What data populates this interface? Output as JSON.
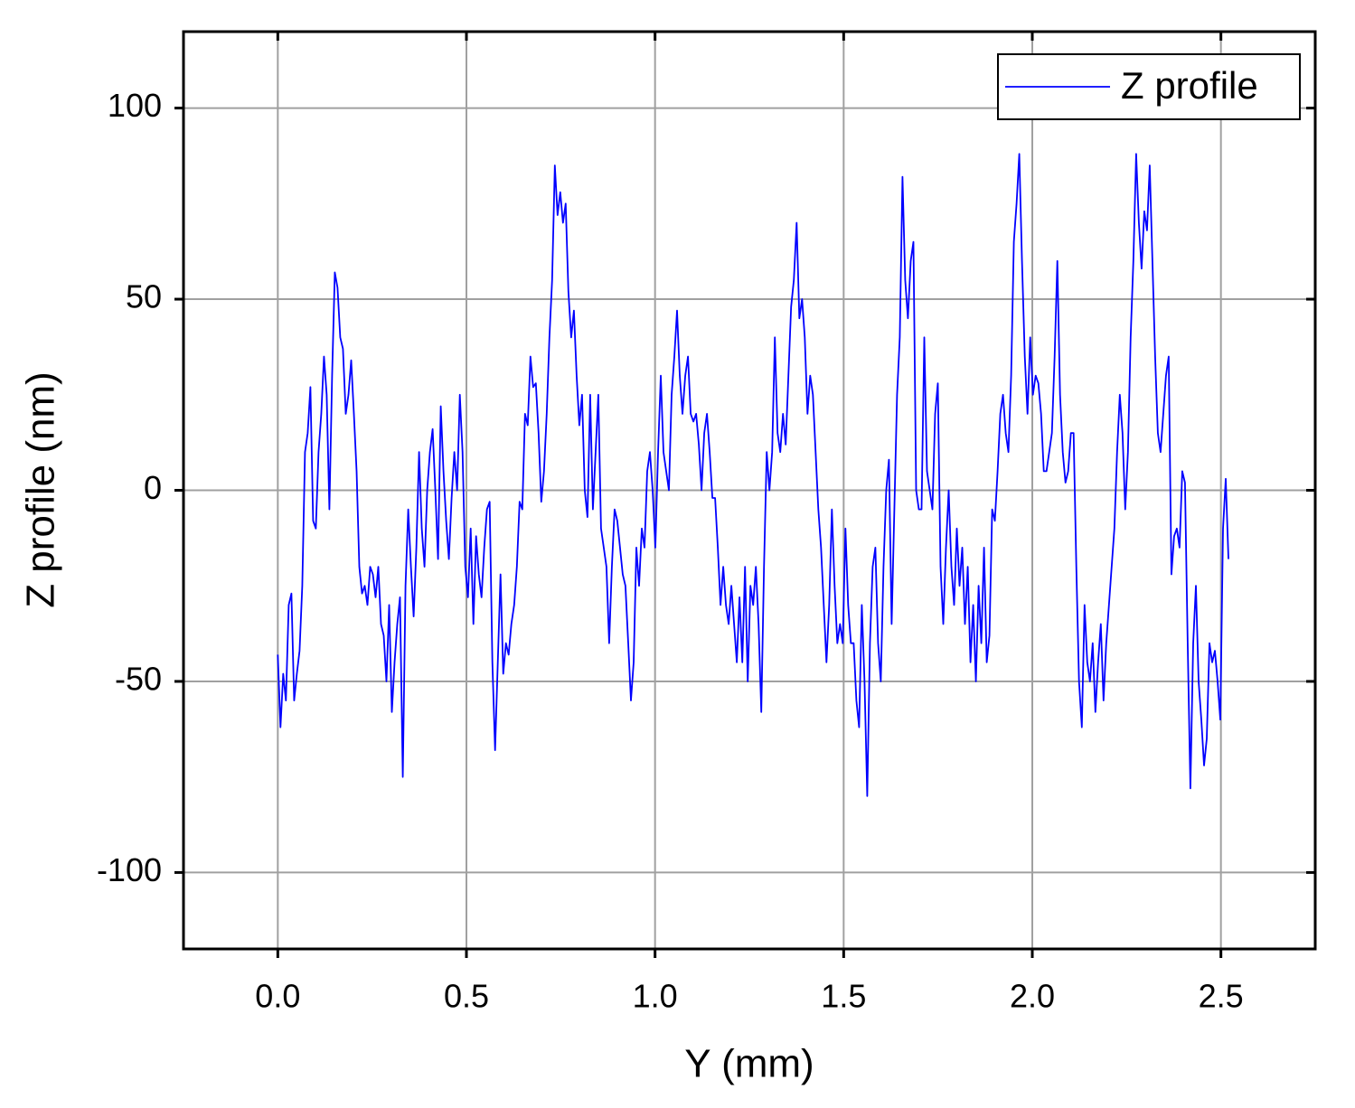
{
  "chart_data": {
    "type": "line",
    "xlabel": "Y (mm)",
    "ylabel": "Z profile (nm)",
    "xlim": [
      -0.25,
      2.75
    ],
    "ylim": [
      -120,
      120
    ],
    "xticks": [
      {
        "value": 0,
        "label": "0.0"
      },
      0.5,
      {
        "value": 1,
        "label": "1.0"
      },
      1.5,
      {
        "value": 2,
        "label": "2.0"
      },
      2.5
    ],
    "yticks": [
      -100,
      -50,
      0,
      50,
      100
    ],
    "grid": true,
    "legend": "upper right",
    "x": [
      0,
      0.0072,
      0.0144,
      0.0216,
      0.0288,
      0.036,
      0.0432,
      0.0504,
      0.0576,
      0.0648,
      0.072,
      0.0792,
      0.0864,
      0.0936,
      0.1008,
      0.108,
      0.1152,
      0.1224,
      0.1296,
      0.1368,
      0.144,
      0.1512,
      0.1584,
      0.1656,
      0.1728,
      0.18,
      0.1872,
      0.1944,
      0.2016,
      0.2088,
      0.216,
      0.2232,
      0.2304,
      0.2376,
      0.2448,
      0.252,
      0.2592,
      0.2664,
      0.2736,
      0.2808,
      0.288,
      0.2952,
      0.3024,
      0.3096,
      0.3168,
      0.324,
      0.3312,
      0.3384,
      0.3456,
      0.3528,
      0.36,
      0.3672,
      0.3744,
      0.3816,
      0.3888,
      0.396,
      0.4032,
      0.4104,
      0.4176,
      0.4248,
      0.432,
      0.4392,
      0.4464,
      0.4536,
      0.4608,
      0.468,
      0.4752,
      0.4824,
      0.4896,
      0.4968,
      0.504,
      0.5112,
      0.5184,
      0.5256,
      0.5328,
      0.54,
      0.5472,
      0.5544,
      0.5616,
      0.5688,
      0.576,
      0.5832,
      0.5904,
      0.5976,
      0.6048,
      0.612,
      0.6192,
      0.6264,
      0.6336,
      0.6408,
      0.648,
      0.6552,
      0.6624,
      0.6696,
      0.6768,
      0.684,
      0.6912,
      0.6984,
      0.7056,
      0.7128,
      0.72,
      0.7272,
      0.7344,
      0.7416,
      0.7488,
      0.756,
      0.7632,
      0.7704,
      0.7776,
      0.7848,
      0.792,
      0.7992,
      0.8064,
      0.8136,
      0.8208,
      0.828,
      0.8352,
      0.8424,
      0.8496,
      0.8568,
      0.864,
      0.8712,
      0.8784,
      0.8856,
      0.8928,
      0.9,
      0.9072,
      0.9144,
      0.9216,
      0.9288,
      0.936,
      0.9432,
      0.9504,
      0.9576,
      0.9648,
      0.972,
      0.9792,
      0.9864,
      0.9936,
      1.0008,
      1.008,
      1.0152,
      1.0224,
      1.0296,
      1.0368,
      1.044,
      1.0512,
      1.0584,
      1.0656,
      1.0728,
      1.08,
      1.0872,
      1.0944,
      1.1016,
      1.1088,
      1.116,
      1.1232,
      1.1304,
      1.1376,
      1.1448,
      1.152,
      1.1592,
      1.1664,
      1.1736,
      1.1808,
      1.188,
      1.1952,
      1.2024,
      1.2096,
      1.2168,
      1.224,
      1.2312,
      1.2384,
      1.2456,
      1.2528,
      1.26,
      1.2672,
      1.2744,
      1.2816,
      1.2888,
      1.296,
      1.3032,
      1.3104,
      1.3176,
      1.3248,
      1.332,
      1.3392,
      1.3464,
      1.3536,
      1.3608,
      1.368,
      1.3752,
      1.3824,
      1.3896,
      1.3968,
      1.404,
      1.4112,
      1.4184,
      1.4256,
      1.4328,
      1.44,
      1.4472,
      1.4544,
      1.4616,
      1.4688,
      1.476,
      1.4832,
      1.4904,
      1.4976,
      1.5048,
      1.512,
      1.5192,
      1.5264,
      1.5336,
      1.5408,
      1.548,
      1.5552,
      1.5624,
      1.5696,
      1.5768,
      1.584,
      1.5912,
      1.5984,
      1.6056,
      1.6128,
      1.62,
      1.6272,
      1.6344,
      1.6416,
      1.6488,
      1.656,
      1.6632,
      1.6704,
      1.6776,
      1.6848,
      1.692,
      1.6992,
      1.7064,
      1.7136,
      1.7208,
      1.728,
      1.7352,
      1.7424,
      1.7496,
      1.7568,
      1.764,
      1.7712,
      1.7784,
      1.7856,
      1.7928,
      1.8,
      1.8072,
      1.8144,
      1.8216,
      1.8288,
      1.836,
      1.8432,
      1.8504,
      1.8576,
      1.8648,
      1.872,
      1.8792,
      1.8864,
      1.8936,
      1.9008,
      1.908,
      1.9152,
      1.9224,
      1.9296,
      1.9368,
      1.944,
      1.9512,
      1.9584,
      1.9656,
      1.9728,
      1.98,
      1.9872,
      1.9944,
      2.0016,
      2.0088,
      2.016,
      2.0232,
      2.0304,
      2.0376,
      2.0448,
      2.052,
      2.0592,
      2.0664,
      2.0736,
      2.0808,
      2.088,
      2.0952,
      2.1024,
      2.1096,
      2.1168,
      2.124,
      2.1312,
      2.1384,
      2.1456,
      2.1528,
      2.16,
      2.1672,
      2.1744,
      2.1816,
      2.1888,
      2.196,
      2.2032,
      2.2104,
      2.2176,
      2.2248,
      2.232,
      2.2392,
      2.2464,
      2.2536,
      2.2608,
      2.268,
      2.2752,
      2.2824,
      2.2896,
      2.2968,
      2.304,
      2.3112,
      2.3184,
      2.3256,
      2.3328,
      2.34,
      2.3472,
      2.3544,
      2.3616,
      2.3688,
      2.376,
      2.3832,
      2.3904,
      2.3976,
      2.4048,
      2.412,
      2.4192,
      2.4264,
      2.4336,
      2.4408,
      2.448,
      2.4552,
      2.4624,
      2.4696,
      2.4768,
      2.484,
      2.4912,
      2.4984,
      2.5056,
      2.5128,
      2.52
    ],
    "series": [
      {
        "name": "Z profile",
        "color": "#0000ff",
        "values": [
          -43,
          -62,
          -48,
          -55,
          -30,
          -27,
          -55,
          -48,
          -42,
          -25,
          10,
          15,
          27,
          -8,
          -10,
          10,
          20,
          35,
          25,
          -5,
          30,
          57,
          53,
          40,
          37,
          20,
          25,
          34,
          20,
          5,
          -20,
          -27,
          -25,
          -30,
          -20,
          -22,
          -28,
          -20,
          -35,
          -38,
          -50,
          -30,
          -58,
          -45,
          -35,
          -28,
          -75,
          -25,
          -5,
          -20,
          -33,
          -15,
          10,
          -10,
          -20,
          0,
          10,
          16,
          0,
          -18,
          22,
          5,
          -8,
          -18,
          -2,
          10,
          0,
          25,
          10,
          -20,
          -28,
          -10,
          -35,
          -12,
          -22,
          -28,
          -15,
          -5,
          -3,
          -45,
          -68,
          -45,
          -22,
          -48,
          -40,
          -43,
          -35,
          -30,
          -20,
          -3,
          -5,
          20,
          17,
          35,
          27,
          28,
          15,
          -3,
          5,
          20,
          40,
          55,
          85,
          72,
          78,
          70,
          75,
          52,
          40,
          47,
          30,
          17,
          25,
          0,
          -7,
          25,
          -5,
          10,
          25,
          -10,
          -15,
          -20,
          -40,
          -20,
          -5,
          -8,
          -15,
          -22,
          -25,
          -40,
          -55,
          -45,
          -15,
          -25,
          -10,
          -15,
          5,
          10,
          0,
          -15,
          10,
          30,
          10,
          5,
          0,
          25,
          35,
          47,
          30,
          20,
          30,
          35,
          20,
          18,
          20,
          12,
          0,
          15,
          20,
          10,
          -2,
          -2,
          -15,
          -30,
          -20,
          -30,
          -35,
          -25,
          -35,
          -45,
          -28,
          -45,
          -20,
          -50,
          -25,
          -30,
          -20,
          -35,
          -58,
          -20,
          10,
          0,
          10,
          40,
          15,
          10,
          20,
          12,
          30,
          48,
          55,
          70,
          45,
          50,
          40,
          20,
          30,
          25,
          10,
          -5,
          -15,
          -30,
          -45,
          -30,
          -5,
          -25,
          -40,
          -35,
          -40,
          -10,
          -30,
          -40,
          -40,
          -55,
          -62,
          -30,
          -50,
          -80,
          -40,
          -20,
          -15,
          -40,
          -50,
          -20,
          0,
          8,
          -35,
          -5,
          25,
          40,
          82,
          55,
          45,
          60,
          65,
          0,
          -5,
          -5,
          40,
          5,
          0,
          -5,
          20,
          28,
          -20,
          -35,
          -15,
          0,
          -20,
          -30,
          -10,
          -25,
          -15,
          -35,
          -20,
          -45,
          -30,
          -50,
          -25,
          -40,
          -15,
          -45,
          -38,
          -5,
          -8,
          5,
          20,
          25,
          15,
          10,
          30,
          65,
          75,
          88,
          60,
          35,
          20,
          40,
          25,
          30,
          28,
          20,
          5,
          5,
          10,
          15,
          35,
          60,
          25,
          10,
          2,
          5,
          15,
          15,
          -20,
          -50,
          -62,
          -30,
          -45,
          -50,
          -40,
          -58,
          -45,
          -35,
          -55,
          -40,
          -30,
          -20,
          -10,
          10,
          25,
          15,
          -5,
          10,
          40,
          60,
          88,
          70,
          58,
          73,
          68,
          85,
          60,
          35,
          15,
          10,
          20,
          30,
          35,
          -22,
          -12,
          -10,
          -15,
          5,
          2,
          -40,
          -78,
          -40,
          -25,
          -50,
          -60,
          -72,
          -65,
          -40,
          -45,
          -42,
          -50,
          -60,
          -10,
          3,
          -18
        ]
      }
    ]
  }
}
